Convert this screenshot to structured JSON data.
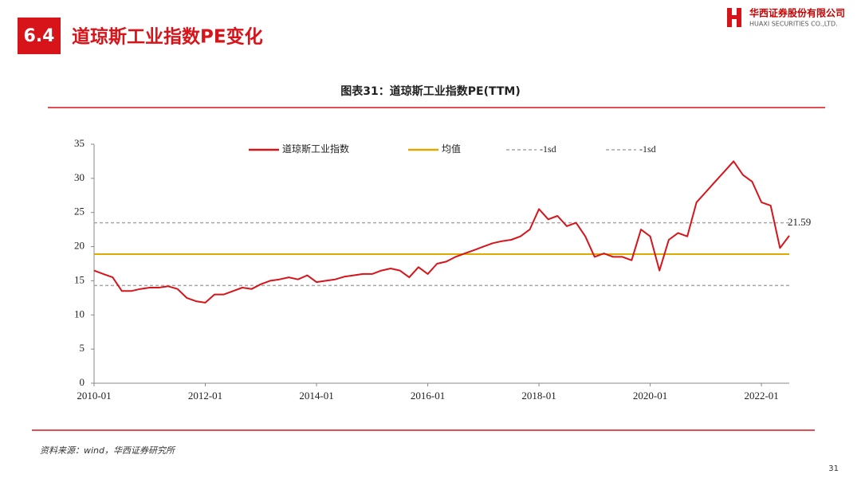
{
  "header": {
    "number": "6.4",
    "title": "道琼斯工业指数PE变化"
  },
  "logo": {
    "name": "华西证券股份有限公司",
    "name_en": "HUAXI SECURITIES CO.,LTD."
  },
  "chart_data": {
    "type": "line",
    "title": "图表31：道琼斯工业指数PE(TTM)",
    "x": [
      "2010-01",
      "2010-03",
      "2010-05",
      "2010-07",
      "2010-09",
      "2010-11",
      "2011-01",
      "2011-03",
      "2011-05",
      "2011-07",
      "2011-09",
      "2011-11",
      "2012-01",
      "2012-03",
      "2012-05",
      "2012-07",
      "2012-09",
      "2012-11",
      "2013-01",
      "2013-03",
      "2013-05",
      "2013-07",
      "2013-09",
      "2013-11",
      "2014-01",
      "2014-03",
      "2014-05",
      "2014-07",
      "2014-09",
      "2014-11",
      "2015-01",
      "2015-03",
      "2015-05",
      "2015-07",
      "2015-09",
      "2015-11",
      "2016-01",
      "2016-03",
      "2016-05",
      "2016-07",
      "2016-09",
      "2016-11",
      "2017-01",
      "2017-03",
      "2017-05",
      "2017-07",
      "2017-09",
      "2017-11",
      "2018-01",
      "2018-03",
      "2018-05",
      "2018-07",
      "2018-09",
      "2018-11",
      "2019-01",
      "2019-03",
      "2019-05",
      "2019-07",
      "2019-09",
      "2019-11",
      "2020-01",
      "2020-03",
      "2020-05",
      "2020-07",
      "2020-09",
      "2020-11",
      "2021-01",
      "2021-03",
      "2021-05",
      "2021-07",
      "2021-09",
      "2021-11",
      "2022-01",
      "2022-03",
      "2022-05",
      "2022-07"
    ],
    "series": [
      {
        "name": "道琼斯工业指数",
        "color": "#d7141a",
        "values": [
          16.5,
          16.0,
          15.5,
          13.5,
          13.5,
          13.8,
          14.0,
          14.0,
          14.2,
          13.8,
          12.5,
          12.0,
          11.8,
          13.0,
          13.0,
          13.5,
          14.0,
          13.8,
          14.5,
          15.0,
          15.2,
          15.5,
          15.2,
          15.8,
          14.8,
          15.0,
          15.2,
          15.6,
          15.8,
          16.0,
          16.0,
          16.5,
          16.8,
          16.5,
          15.5,
          17.0,
          16.0,
          17.5,
          17.8,
          18.5,
          19.0,
          19.5,
          20.0,
          20.5,
          20.8,
          21.0,
          21.5,
          22.5,
          25.5,
          24.0,
          24.5,
          23.0,
          23.5,
          21.5,
          18.5,
          19.0,
          18.5,
          18.5,
          18.0,
          22.5,
          21.5,
          16.5,
          21.0,
          22.0,
          21.5,
          26.5,
          28.0,
          29.5,
          31.0,
          32.5,
          30.5,
          29.5,
          26.5,
          26.0,
          19.8,
          21.59
        ]
      }
    ],
    "reference_lines": [
      {
        "name": "均值",
        "color": "#e0a800",
        "value": 18.9,
        "dashed": false
      },
      {
        "name": "-1sd",
        "color": "#a6a6a6",
        "value": 23.5,
        "dashed": true
      },
      {
        "name": "-1sd",
        "color": "#a6a6a6",
        "value": 14.3,
        "dashed": true
      }
    ],
    "xlim": [
      "2010-01",
      "2022-07"
    ],
    "xticks": [
      "2010-01",
      "2012-01",
      "2014-01",
      "2016-01",
      "2018-01",
      "2020-01",
      "2022-01"
    ],
    "ylim": [
      0,
      35
    ],
    "yticks": [
      0,
      5,
      10,
      15,
      20,
      25,
      30,
      35
    ]
  },
  "source": "资料来源：wind，华西证券研究所",
  "page_number": "31"
}
